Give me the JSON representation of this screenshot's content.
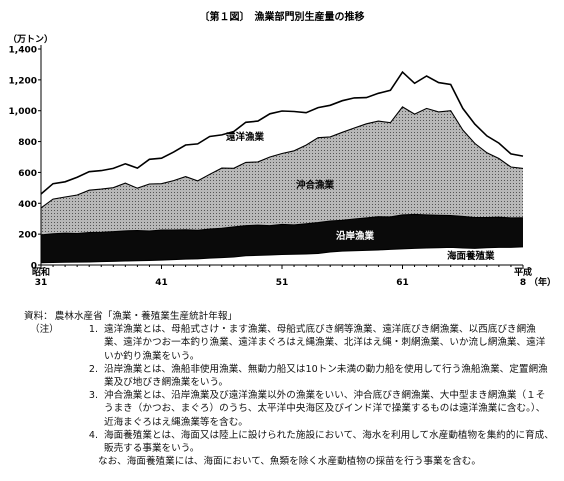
{
  "chart_data": {
    "type": "area",
    "title": "〔第１図〕　漁業部門別生産量の推移",
    "ylabel": "（万トン）",
    "ylim": [
      0,
      1400
    ],
    "yticks": [
      "0",
      "200",
      "400",
      "600",
      "800",
      "1,000",
      "1,200",
      "1,400"
    ],
    "xlabel": "（年）",
    "x_ticks": [
      {
        "year": 1956,
        "label": "昭和\n31"
      },
      {
        "year": 1966,
        "label": "41"
      },
      {
        "year": 1976,
        "label": "51"
      },
      {
        "year": 1986,
        "label": "61"
      },
      {
        "year": 1996,
        "label": "平成\n8"
      }
    ],
    "x": [
      1956,
      1957,
      1958,
      1959,
      1960,
      1961,
      1962,
      1963,
      1964,
      1965,
      1966,
      1967,
      1968,
      1969,
      1970,
      1971,
      1972,
      1973,
      1974,
      1975,
      1976,
      1977,
      1978,
      1979,
      1980,
      1981,
      1982,
      1983,
      1984,
      1985,
      1986,
      1987,
      1988,
      1989,
      1990,
      1991,
      1992,
      1993,
      1994,
      1995,
      1996
    ],
    "series": [
      {
        "name": "海面養殖業",
        "color": "#ffffff",
        "values": [
          15,
          17,
          18,
          19,
          20,
          22,
          24,
          26,
          28,
          30,
          32,
          35,
          38,
          40,
          45,
          48,
          52,
          60,
          63,
          65,
          68,
          70,
          72,
          75,
          85,
          90,
          93,
          95,
          98,
          102,
          105,
          108,
          110,
          112,
          115,
          110,
          108,
          112,
          115,
          115,
          118
        ]
      },
      {
        "name": "沿岸漁業",
        "color": "#0a0a0a",
        "values": [
          180,
          185,
          188,
          185,
          190,
          190,
          192,
          195,
          195,
          190,
          195,
          192,
          190,
          185,
          188,
          190,
          195,
          195,
          195,
          190,
          195,
          190,
          195,
          200,
          200,
          200,
          205,
          210,
          215,
          210,
          220,
          220,
          215,
          210,
          205,
          205,
          200,
          195,
          195,
          190,
          188
        ]
      },
      {
        "name": "沖合漁業",
        "color": "#a5a5a5",
        "values": [
          175,
          225,
          235,
          250,
          275,
          280,
          285,
          310,
          275,
          305,
          300,
          320,
          345,
          320,
          355,
          390,
          380,
          410,
          410,
          445,
          460,
          480,
          510,
          550,
          545,
          570,
          590,
          610,
          620,
          610,
          700,
          650,
          690,
          670,
          680,
          560,
          480,
          420,
          380,
          330,
          320
        ]
      },
      {
        "name": "遠洋漁業",
        "color": "#ffffff",
        "values": [
          90,
          100,
          98,
          115,
          120,
          120,
          125,
          125,
          130,
          160,
          165,
          185,
          205,
          240,
          245,
          215,
          238,
          260,
          265,
          280,
          275,
          255,
          210,
          195,
          205,
          205,
          195,
          170,
          180,
          210,
          225,
          200,
          210,
          190,
          170,
          140,
          125,
          110,
          100,
          85,
          80
        ]
      }
    ],
    "labels": {
      "enyo": "遠洋漁業",
      "okiai": "沖合漁業",
      "engan": "沿岸漁業",
      "yoshoku": "海面養殖業"
    }
  },
  "notes": {
    "source_label": "資料：",
    "source": "農林水産省「漁業・養殖業生産統計年報」",
    "note_label": "（注）",
    "items": [
      {
        "num": "1.",
        "text": "遠洋漁業とは、母船式さけ・ます漁業、母船式底びき網等漁業、遠洋底びき網漁業、以西底びき網漁業、遠洋かつお一本釣り漁業、遠洋まぐろはえ縄漁業、北洋はえ縄・刺網漁業、いか流し網漁業、遠洋いか釣り漁業をいう。"
      },
      {
        "num": "2.",
        "text": "沿岸漁業とは、漁船非使用漁業、無動力船又は10トン未満の動力船を使用して行う漁船漁業、定置網漁業及び地びき網漁業をいう。"
      },
      {
        "num": "3.",
        "text": "沖合漁業とは、沿岸漁業及び遠洋漁業以外の漁業をいい、沖合底びき網漁業、大中型まき網漁業（１そうまき（かつお、まぐろ）のうち、太平洋中央海区及びインド洋で操業するものは遠洋漁業に含む。）、近海まぐろはえ縄漁業等を含む。"
      },
      {
        "num": "4.",
        "text": "海面養殖業とは、海面又は陸上に設けられた施設において、海水を利用して水産動植物を集約的に育成、販売する事業をいう。"
      }
    ],
    "extra": "なお、海面養殖業には、海面において、魚類を除く水産動植物の採苗を行う事業を含む。"
  }
}
